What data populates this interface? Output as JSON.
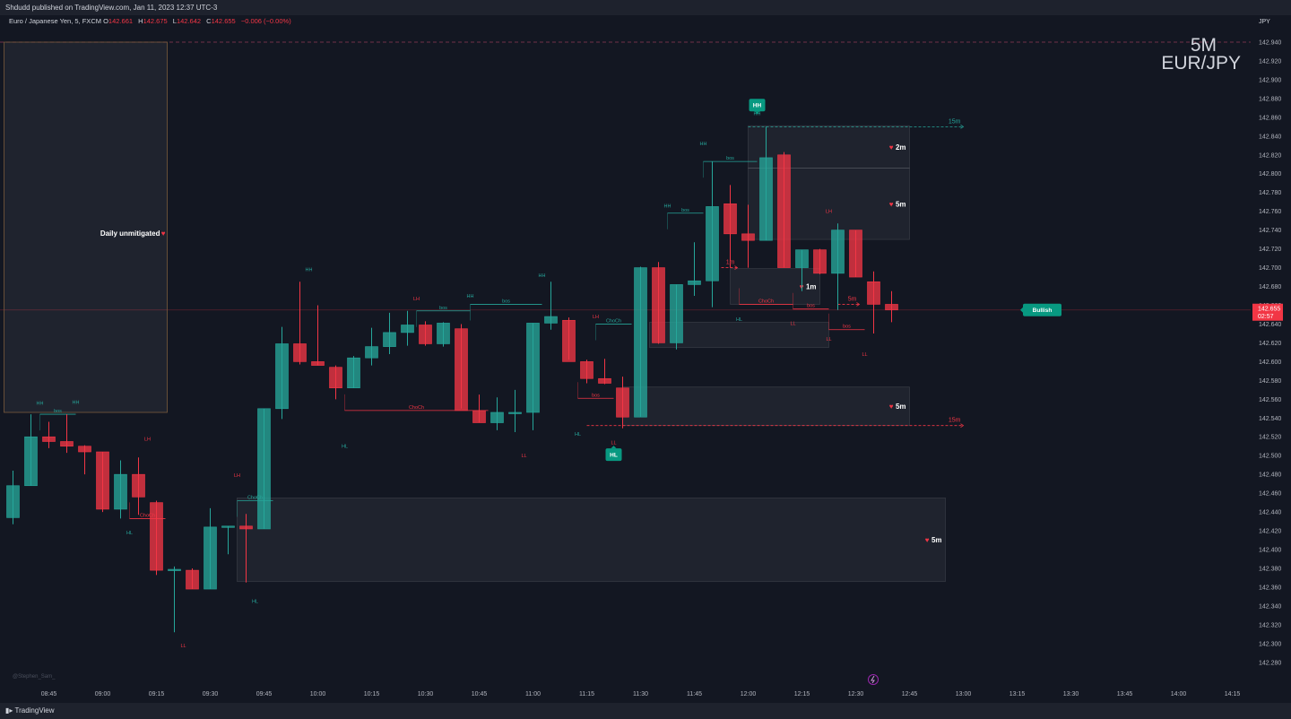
{
  "header": {
    "published": "Shdudd published on TradingView.com, Jan 11, 2023 12:37 UTC-3",
    "symbol": "Euro / Japanese Yen, 5, FXCM",
    "ohlc": [
      {
        "label": "O",
        "value": "142.661"
      },
      {
        "label": "H",
        "value": "142.675"
      },
      {
        "label": "L",
        "value": "142.642"
      },
      {
        "label": "C",
        "value": "142.655"
      }
    ],
    "change": "−0.006 (−0.00%)"
  },
  "watermark": {
    "timeframe": "5M",
    "pair": "EUR/JPY"
  },
  "footer": {
    "brand": "TradingView",
    "author": "@Stephen_Sam_"
  },
  "colors": {
    "up": "#26a69a",
    "down": "#f23645",
    "bg": "#131722",
    "text": "#d1d4dc"
  },
  "chart_data": {
    "type": "candlestick",
    "currency": "JPY",
    "price_range": [
      142.27,
      142.955
    ],
    "y_ticks": [
      142.94,
      142.92,
      142.9,
      142.88,
      142.86,
      142.84,
      142.82,
      142.8,
      142.78,
      142.76,
      142.74,
      142.72,
      142.7,
      142.68,
      142.66,
      142.64,
      142.62,
      142.6,
      142.58,
      142.56,
      142.54,
      142.52,
      142.5,
      142.48,
      142.46,
      142.44,
      142.42,
      142.4,
      142.38,
      142.36,
      142.34,
      142.32,
      142.3,
      142.28
    ],
    "y_tick_labels": [
      "142.940",
      "142.920",
      "142.900",
      "142.880",
      "142.860",
      "142.840",
      "142.820",
      "142.800",
      "142.780",
      "142.760",
      "142.740",
      "142.720",
      "142.700",
      "142.680",
      "142.660",
      "142.640",
      "142.620",
      "142.600",
      "142.580",
      "142.560",
      "142.540",
      "142.520",
      "142.500",
      "142.480",
      "142.460",
      "142.440",
      "142.420",
      "142.400",
      "142.380",
      "142.360",
      "142.340",
      "142.320",
      "142.300",
      "142.280"
    ],
    "x_ticks": [
      {
        "t": 2,
        "label": "08:45"
      },
      {
        "t": 5,
        "label": "09:00"
      },
      {
        "t": 8,
        "label": "09:15"
      },
      {
        "t": 11,
        "label": "09:30"
      },
      {
        "t": 14,
        "label": "09:45"
      },
      {
        "t": 17,
        "label": "10:00"
      },
      {
        "t": 20,
        "label": "10:15"
      },
      {
        "t": 23,
        "label": "10:30"
      },
      {
        "t": 26,
        "label": "10:45"
      },
      {
        "t": 29,
        "label": "11:00"
      },
      {
        "t": 32,
        "label": "11:15"
      },
      {
        "t": 35,
        "label": "11:30"
      },
      {
        "t": 38,
        "label": "11:45"
      },
      {
        "t": 41,
        "label": "12:00"
      },
      {
        "t": 44,
        "label": "12:15"
      },
      {
        "t": 47,
        "label": "12:30"
      },
      {
        "t": 50,
        "label": "12:45"
      },
      {
        "t": 53,
        "label": "13:00"
      },
      {
        "t": 56,
        "label": "13:15"
      },
      {
        "t": 59,
        "label": "13:30"
      },
      {
        "t": 62,
        "label": "13:45"
      },
      {
        "t": 65,
        "label": "14:00"
      },
      {
        "t": 68,
        "label": "14:15"
      }
    ],
    "candles": [
      {
        "o": 142.434,
        "h": 142.484,
        "l": 142.427,
        "c": 142.468
      },
      {
        "o": 142.468,
        "h": 142.544,
        "l": 142.468,
        "c": 142.52
      },
      {
        "o": 142.52,
        "h": 142.536,
        "l": 142.508,
        "c": 142.515
      },
      {
        "o": 142.515,
        "h": 142.544,
        "l": 142.503,
        "c": 142.51
      },
      {
        "o": 142.51,
        "h": 142.511,
        "l": 142.48,
        "c": 142.504
      },
      {
        "o": 142.504,
        "h": 142.504,
        "l": 142.44,
        "c": 142.443
      },
      {
        "o": 142.443,
        "h": 142.495,
        "l": 142.433,
        "c": 142.48
      },
      {
        "o": 142.48,
        "h": 142.498,
        "l": 142.437,
        "c": 142.456
      },
      {
        "o": 142.45,
        "h": 142.452,
        "l": 142.373,
        "c": 142.378
      },
      {
        "o": 142.378,
        "h": 142.382,
        "l": 142.312,
        "c": 142.379
      },
      {
        "o": 142.378,
        "h": 142.38,
        "l": 142.358,
        "c": 142.358
      },
      {
        "o": 142.358,
        "h": 142.444,
        "l": 142.358,
        "c": 142.424
      },
      {
        "o": 142.424,
        "h": 142.425,
        "l": 142.395,
        "c": 142.425
      },
      {
        "o": 142.425,
        "h": 142.438,
        "l": 142.365,
        "c": 142.422
      },
      {
        "o": 142.422,
        "h": 142.55,
        "l": 142.422,
        "c": 142.55
      },
      {
        "o": 142.55,
        "h": 142.637,
        "l": 142.539,
        "c": 142.619
      },
      {
        "o": 142.619,
        "h": 142.685,
        "l": 142.597,
        "c": 142.6
      },
      {
        "o": 142.6,
        "h": 142.66,
        "l": 142.596,
        "c": 142.596
      },
      {
        "o": 142.594,
        "h": 142.596,
        "l": 142.56,
        "c": 142.572
      },
      {
        "o": 142.572,
        "h": 142.606,
        "l": 142.572,
        "c": 142.604
      },
      {
        "o": 142.604,
        "h": 142.636,
        "l": 142.596,
        "c": 142.616
      },
      {
        "o": 142.616,
        "h": 142.652,
        "l": 142.608,
        "c": 142.631
      },
      {
        "o": 142.631,
        "h": 142.654,
        "l": 142.617,
        "c": 142.639
      },
      {
        "o": 142.639,
        "h": 142.643,
        "l": 142.617,
        "c": 142.619
      },
      {
        "o": 142.619,
        "h": 142.642,
        "l": 142.616,
        "c": 142.641
      },
      {
        "o": 142.635,
        "h": 142.64,
        "l": 142.55,
        "c": 142.548
      },
      {
        "o": 142.548,
        "h": 142.565,
        "l": 142.535,
        "c": 142.535
      },
      {
        "o": 142.535,
        "h": 142.562,
        "l": 142.527,
        "c": 142.546
      },
      {
        "o": 142.546,
        "h": 142.57,
        "l": 142.525,
        "c": 142.546
      },
      {
        "o": 142.546,
        "h": 142.641,
        "l": 142.527,
        "c": 142.641
      },
      {
        "o": 142.641,
        "h": 142.685,
        "l": 142.634,
        "c": 142.648
      },
      {
        "o": 142.644,
        "h": 142.647,
        "l": 142.602,
        "c": 142.6
      },
      {
        "o": 142.6,
        "h": 142.602,
        "l": 142.577,
        "c": 142.582
      },
      {
        "o": 142.582,
        "h": 142.603,
        "l": 142.576,
        "c": 142.577
      },
      {
        "o": 142.572,
        "h": 142.584,
        "l": 142.529,
        "c": 142.541
      },
      {
        "o": 142.541,
        "h": 142.701,
        "l": 142.541,
        "c": 142.7
      },
      {
        "o": 142.7,
        "h": 142.706,
        "l": 142.619,
        "c": 142.62
      },
      {
        "o": 142.62,
        "h": 142.682,
        "l": 142.613,
        "c": 142.682
      },
      {
        "o": 142.682,
        "h": 142.727,
        "l": 142.67,
        "c": 142.686
      },
      {
        "o": 142.686,
        "h": 142.813,
        "l": 142.658,
        "c": 142.765
      },
      {
        "o": 142.768,
        "h": 142.788,
        "l": 142.7,
        "c": 142.736
      },
      {
        "o": 142.736,
        "h": 142.767,
        "l": 142.7,
        "c": 142.729
      },
      {
        "o": 142.729,
        "h": 142.85,
        "l": 142.729,
        "c": 142.817
      },
      {
        "o": 142.82,
        "h": 142.823,
        "l": 142.7,
        "c": 142.7
      },
      {
        "o": 142.7,
        "h": 142.719,
        "l": 142.675,
        "c": 142.719
      },
      {
        "o": 142.719,
        "h": 142.72,
        "l": 142.693,
        "c": 142.694
      },
      {
        "o": 142.694,
        "h": 142.747,
        "l": 142.655,
        "c": 142.74
      },
      {
        "o": 142.74,
        "h": 142.74,
        "l": 142.69,
        "c": 142.69
      },
      {
        "o": 142.685,
        "h": 142.696,
        "l": 142.63,
        "c": 142.661
      },
      {
        "o": 142.661,
        "h": 142.675,
        "l": 142.642,
        "c": 142.655
      }
    ],
    "zones": [
      {
        "t1": -0.5,
        "t2": 8.6,
        "top": 142.94,
        "bottom": 142.546,
        "label": "Daily unmitigated",
        "border": "#7a5a3c"
      },
      {
        "t1": 41,
        "t2": 50,
        "top": 142.851,
        "bottom": 142.806,
        "label": "2m"
      },
      {
        "t1": 41,
        "t2": 50,
        "top": 142.806,
        "bottom": 142.73,
        "label": "5m"
      },
      {
        "t1": 40,
        "t2": 45,
        "top": 142.699,
        "bottom": 142.661,
        "label": "1m"
      },
      {
        "t1": 35.5,
        "t2": 45.5,
        "top": 142.642,
        "bottom": 142.615,
        "label": ""
      },
      {
        "t1": 34,
        "t2": 50,
        "top": 142.573,
        "bottom": 142.532,
        "label": "5m"
      },
      {
        "t1": 12.5,
        "t2": 52,
        "top": 142.455,
        "bottom": 142.366,
        "label": "5m"
      }
    ],
    "zone_lines": [
      {
        "t1": 41,
        "t2": 53,
        "price": 142.85,
        "label": "15m",
        "color": "#26a69a"
      },
      {
        "t1": 32,
        "t2": 53,
        "price": 142.532,
        "label": "15m",
        "color": "#f23645"
      },
      {
        "t1": 39.5,
        "t2": 40.4,
        "price": 142.7,
        "label": "1m",
        "color": "#f23645"
      },
      {
        "t1": 46,
        "t2": 47.2,
        "price": 142.661,
        "label": "5m",
        "color": "#f23645"
      }
    ],
    "structure_lines": [
      {
        "t1": 1.5,
        "t2": 3.5,
        "price": 142.544,
        "label": "bos",
        "color": "#26a69a"
      },
      {
        "t1": 6.5,
        "t2": 8.5,
        "price": 142.433,
        "label": "ChoCh",
        "color": "#f23645"
      },
      {
        "t1": 12.5,
        "t2": 14.5,
        "price": 142.452,
        "label": "ChoCh",
        "color": "#26a69a"
      },
      {
        "t1": 18.5,
        "t2": 26.5,
        "price": 142.548,
        "label": "ChoCh",
        "color": "#f23645"
      },
      {
        "t1": 22.5,
        "t2": 25.5,
        "price": 142.654,
        "label": "bos",
        "color": "#26a69a"
      },
      {
        "t1": 25.5,
        "t2": 29.5,
        "price": 142.661,
        "label": "bos",
        "color": "#26a69a"
      },
      {
        "t1": 32.5,
        "t2": 34.5,
        "price": 142.64,
        "label": "ChoCh",
        "color": "#26a69a"
      },
      {
        "t1": 31.5,
        "t2": 33.5,
        "price": 142.561,
        "label": "bos",
        "color": "#f23645"
      },
      {
        "t1": 36.5,
        "t2": 38.5,
        "price": 142.758,
        "label": "bos",
        "color": "#26a69a"
      },
      {
        "t1": 38.5,
        "t2": 41.5,
        "price": 142.813,
        "label": "bos",
        "color": "#26a69a"
      },
      {
        "t1": 40.5,
        "t2": 43.5,
        "price": 142.661,
        "label": "ChoCh",
        "color": "#f23645"
      },
      {
        "t1": 43.5,
        "t2": 45.5,
        "price": 142.656,
        "label": "bos",
        "color": "#f23645"
      },
      {
        "t1": 45.5,
        "t2": 47.5,
        "price": 142.634,
        "label": "bos",
        "color": "#f23645"
      }
    ],
    "swing_labels": [
      {
        "t": 1.5,
        "price": 142.556,
        "text": "HH",
        "color": "#26a69a"
      },
      {
        "t": 3.5,
        "price": 142.557,
        "text": "HH",
        "color": "#26a69a"
      },
      {
        "t": 7.5,
        "price": 142.518,
        "text": "LH",
        "color": "#f23645"
      },
      {
        "t": 6.5,
        "price": 142.418,
        "text": "HL",
        "color": "#26a69a"
      },
      {
        "t": 9.5,
        "price": 142.298,
        "text": "LL",
        "color": "#f23645"
      },
      {
        "t": 12.5,
        "price": 142.479,
        "text": "LH",
        "color": "#f23645"
      },
      {
        "t": 13.5,
        "price": 142.345,
        "text": "HL",
        "color": "#26a69a"
      },
      {
        "t": 16.5,
        "price": 142.698,
        "text": "HH",
        "color": "#26a69a"
      },
      {
        "t": 18.5,
        "price": 142.51,
        "text": "HL",
        "color": "#26a69a"
      },
      {
        "t": 22.5,
        "price": 142.667,
        "text": "LH",
        "color": "#f23645"
      },
      {
        "t": 25.5,
        "price": 142.67,
        "text": "HH",
        "color": "#26a69a"
      },
      {
        "t": 28.5,
        "price": 142.5,
        "text": "LL",
        "color": "#f23645"
      },
      {
        "t": 29.5,
        "price": 142.692,
        "text": "HH",
        "color": "#26a69a"
      },
      {
        "t": 31.5,
        "price": 142.523,
        "text": "HL",
        "color": "#26a69a"
      },
      {
        "t": 32.5,
        "price": 142.648,
        "text": "LH",
        "color": "#f23645"
      },
      {
        "t": 33.5,
        "price": 142.514,
        "text": "LL",
        "color": "#f23645"
      },
      {
        "t": 36.5,
        "price": 142.766,
        "text": "HH",
        "color": "#26a69a"
      },
      {
        "t": 38.5,
        "price": 142.832,
        "text": "HH",
        "color": "#26a69a"
      },
      {
        "t": 41.5,
        "price": 142.864,
        "text": "HH",
        "color": "#26a69a"
      },
      {
        "t": 40.5,
        "price": 142.645,
        "text": "HL",
        "color": "#26a69a"
      },
      {
        "t": 43.5,
        "price": 142.641,
        "text": "LL",
        "color": "#f23645"
      },
      {
        "t": 45.5,
        "price": 142.624,
        "text": "LL",
        "color": "#f23645"
      },
      {
        "t": 45.5,
        "price": 142.76,
        "text": "LH",
        "color": "#f23645"
      },
      {
        "t": 47.5,
        "price": 142.608,
        "text": "LL",
        "color": "#f23645"
      }
    ],
    "markers": [
      {
        "t": 41.5,
        "price": 142.873,
        "text": "HH",
        "color": "#089981",
        "pointer": "down"
      },
      {
        "t": 33.5,
        "price": 142.501,
        "text": "HL",
        "color": "#089981",
        "pointer": "up"
      },
      {
        "t": 57.4,
        "price": 142.655,
        "text": "Bullish",
        "color": "#089981",
        "pointer": "left"
      }
    ],
    "current_price": {
      "value": 142.655,
      "label": "142.655",
      "countdown": "02:57"
    },
    "dashed_high": 142.94,
    "scale_note": "price"
  }
}
